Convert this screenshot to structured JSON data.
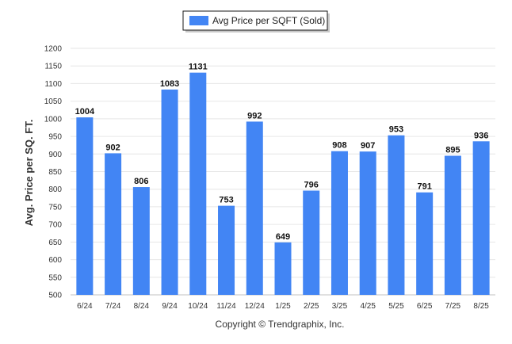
{
  "legend": {
    "label": "Avg Price per SQFT (Sold)",
    "color": "#4285f4"
  },
  "footer": {
    "copyright": "Copyright © Trendgraphix, Inc."
  },
  "chart_data": {
    "type": "bar",
    "ylabel": "Avg. Price per SQ. FT.",
    "xlabel": "",
    "ylim": [
      500,
      1200
    ],
    "yticks": [
      500,
      550,
      600,
      650,
      700,
      750,
      800,
      850,
      900,
      950,
      1000,
      1050,
      1100,
      1150,
      1200
    ],
    "grid": true,
    "legend_position": "top-center",
    "bar_color": "#4285f4",
    "categories": [
      "6/24",
      "7/24",
      "8/24",
      "9/24",
      "10/24",
      "11/24",
      "12/24",
      "1/25",
      "2/25",
      "3/25",
      "4/25",
      "5/25",
      "6/25",
      "7/25",
      "8/25"
    ],
    "series": [
      {
        "name": "Avg Price per SQFT (Sold)",
        "values": [
          1004,
          902,
          806,
          1083,
          1131,
          753,
          992,
          649,
          796,
          908,
          907,
          953,
          791,
          895,
          936
        ]
      }
    ]
  }
}
